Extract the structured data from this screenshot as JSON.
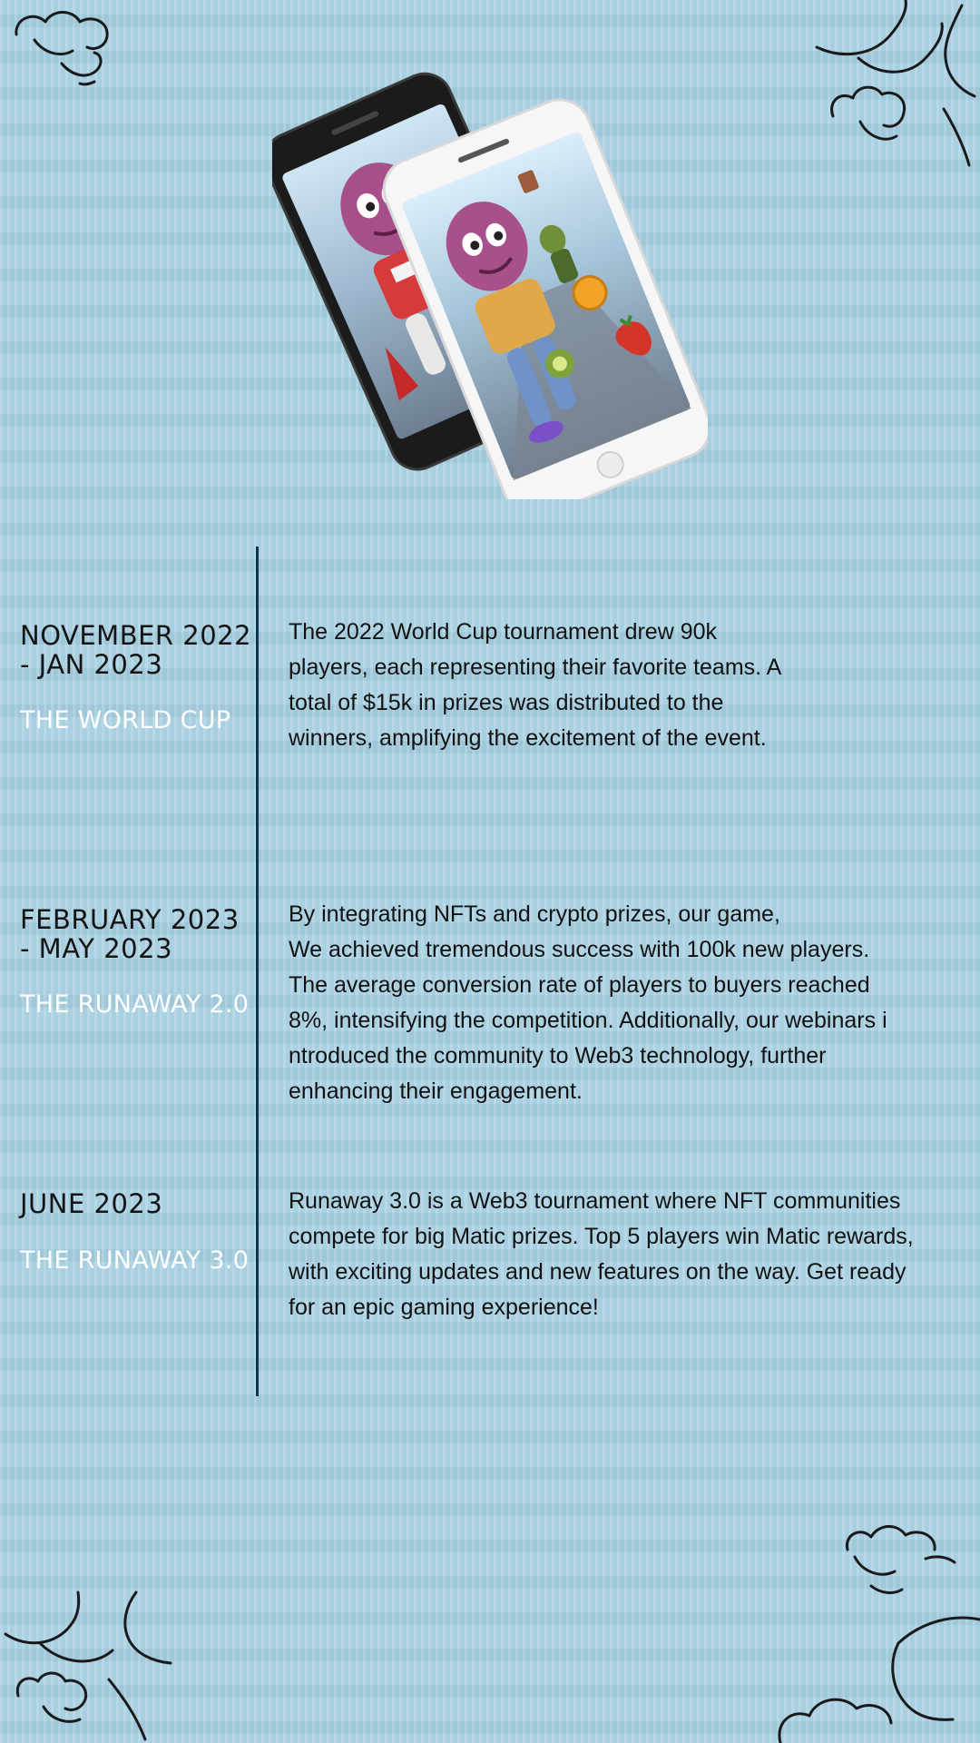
{
  "timeline": [
    {
      "date": "NOVEMBER 2022 - JAN 2023",
      "title": "THE WORLD CUP",
      "description_lines": [
        "The 2022 World Cup tournament drew 90k",
        "players, each representing their favorite teams. A",
        "total of $15k in prizes was distributed to the",
        "winners, amplifying the excitement of the event."
      ]
    },
    {
      "date": "FEBRUARY 2023 - MAY 2023",
      "title": "THE RUNAWAY 2.0",
      "description_lines": [
        "By integrating NFTs and crypto prizes, our game,",
        "We achieved tremendous success with 100k new players.",
        "The average conversion rate of players to buyers reached",
        "8%, intensifying the competition. Additionally, our webinars i",
        "ntroduced the community to Web3 technology, further",
        "enhancing their engagement."
      ]
    },
    {
      "date": "JUNE 2023",
      "title": "THE RUNAWAY 3.0",
      "description_lines": [
        "Runaway 3.0 is a Web3 tournament where NFT communities",
        "compete for big Matic prizes. Top 5 players win Matic rewards,",
        "with exciting updates and new features on the way. Get ready",
        "for an epic gaming experience!"
      ]
    }
  ],
  "colors": {
    "background": "#a9d0e1",
    "timeline_line": "#0d3552",
    "title_text": "#ffffff",
    "body_text": "#111111"
  },
  "icons": {
    "decor_top_left": "cloud-doodle-icon",
    "decor_top_right": "cloud-doodle-icon",
    "decor_bottom_left": "cloud-doodle-icon",
    "decor_bottom_right": "cloud-doodle-icon",
    "hero": "phones-game-illustration"
  }
}
